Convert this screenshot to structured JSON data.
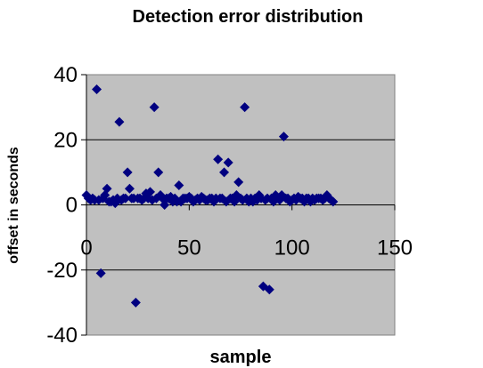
{
  "chart_data": {
    "type": "scatter",
    "title": "Detection error distribution",
    "xlabel": "sample",
    "ylabel": "offset in seconds",
    "xlim": [
      0,
      150
    ],
    "ylim": [
      -40,
      40
    ],
    "xticks": [
      0,
      50,
      100,
      150
    ],
    "yticks": [
      -40,
      -20,
      0,
      20,
      40
    ],
    "grid": "horizontal major gridlines",
    "plot_background": "#C0C0C0",
    "marker_color": "#000080",
    "marker": "diamond",
    "x": [
      0,
      1,
      2,
      3,
      4,
      5,
      6,
      7,
      8,
      9,
      10,
      11,
      12,
      13,
      14,
      15,
      16,
      17,
      18,
      19,
      20,
      21,
      22,
      23,
      24,
      25,
      26,
      27,
      28,
      29,
      30,
      31,
      32,
      33,
      34,
      35,
      36,
      37,
      38,
      39,
      40,
      41,
      42,
      43,
      44,
      45,
      46,
      47,
      48,
      49,
      50,
      51,
      52,
      53,
      54,
      55,
      56,
      57,
      58,
      59,
      60,
      61,
      62,
      63,
      64,
      65,
      66,
      67,
      68,
      69,
      70,
      71,
      72,
      73,
      74,
      75,
      76,
      77,
      78,
      79,
      80,
      81,
      82,
      83,
      84,
      85,
      86,
      87,
      88,
      89,
      90,
      91,
      92,
      93,
      94,
      95,
      96,
      97,
      98,
      99,
      100,
      101,
      102,
      103,
      104,
      105,
      106,
      107,
      108,
      109,
      110,
      111,
      112,
      113,
      114,
      115,
      116,
      117,
      118,
      119,
      120
    ],
    "y": [
      3,
      2,
      1.5,
      2,
      1.5,
      35.5,
      1.5,
      -21,
      2,
      3,
      5,
      1,
      1,
      1.5,
      0.5,
      2,
      25.5,
      1.5,
      2,
      2,
      10,
      5,
      2,
      2,
      -30,
      2,
      2,
      1.5,
      2,
      3.5,
      2,
      4,
      1.5,
      30,
      2,
      10,
      3,
      2,
      0,
      2,
      2,
      2.5,
      1,
      2,
      1,
      6,
      1,
      2,
      2,
      2,
      2.5,
      2,
      1,
      1.5,
      2,
      1.5,
      2.5,
      2,
      1.5,
      1.5,
      2,
      2,
      1,
      2,
      14,
      2,
      2,
      10,
      1,
      13,
      2,
      2,
      1,
      3,
      7,
      2,
      1.5,
      30,
      2,
      1,
      2,
      1,
      2,
      1.5,
      3,
      2,
      -25,
      1.5,
      2,
      -26,
      2,
      1,
      3,
      2,
      1.5,
      3,
      21,
      2,
      2,
      1,
      1.5,
      2,
      1.5,
      2.5,
      2,
      2,
      1,
      2,
      2,
      1,
      2,
      1.5,
      2,
      2,
      2,
      1.5,
      2,
      3,
      2,
      1.5,
      1
    ]
  }
}
